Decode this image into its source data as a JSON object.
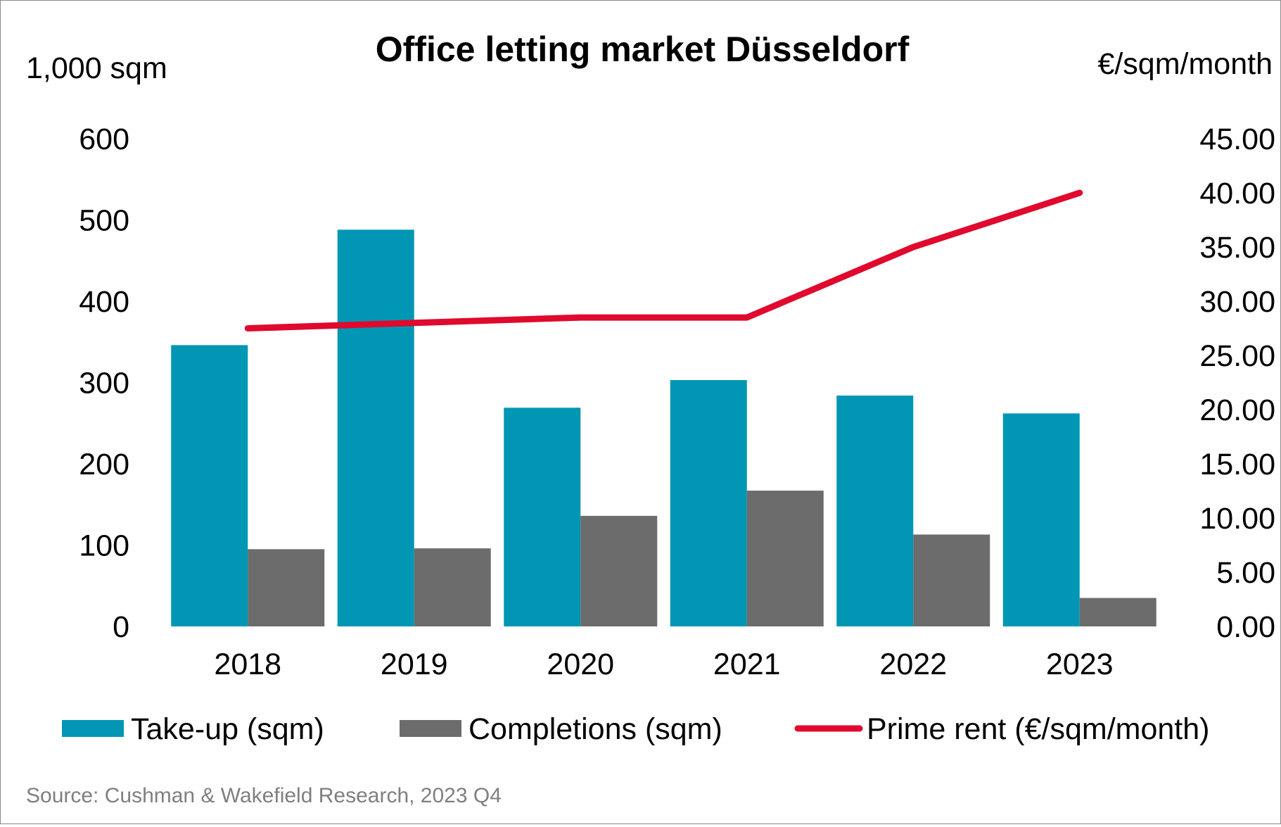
{
  "chart_data": {
    "type": "bar",
    "title": "Office letting market Düsseldorf",
    "y_left_unit": "1,000 sqm",
    "y_right_unit": "€/sqm/month",
    "categories": [
      "2018",
      "2019",
      "2020",
      "2021",
      "2022",
      "2023"
    ],
    "series": [
      {
        "name": "Take-up (sqm)",
        "kind": "bar",
        "axis": "left",
        "color": "#0096b4",
        "values": [
          346,
          488,
          269,
          303,
          284,
          262
        ]
      },
      {
        "name": "Completions (sqm)",
        "kind": "bar",
        "axis": "left",
        "color": "#6b6c6b",
        "values": [
          95,
          96,
          136,
          167,
          113,
          35
        ]
      },
      {
        "name": "Prime rent (€/sqm/month)",
        "kind": "line",
        "axis": "right",
        "color": "#e0092e",
        "values": [
          27.5,
          28.0,
          28.5,
          28.5,
          35.0,
          40.0
        ]
      }
    ],
    "y_left_ticks": [
      "0",
      "100",
      "200",
      "300",
      "400",
      "500",
      "600"
    ],
    "y_left_range": [
      0,
      600
    ],
    "y_right_ticks": [
      "0.00",
      "5.00",
      "10.00",
      "15.00",
      "20.00",
      "25.00",
      "30.00",
      "35.00",
      "40.00",
      "45.00"
    ],
    "y_right_range": [
      0,
      45
    ],
    "grid": false,
    "legend_position": "bottom"
  },
  "source": "Source: Cushman & Wakefield Research, 2023 Q4"
}
